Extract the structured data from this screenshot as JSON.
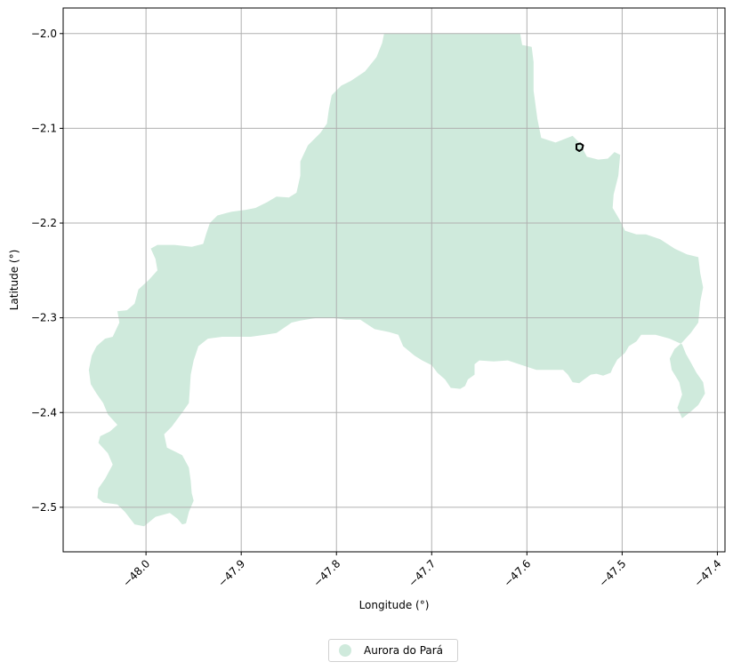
{
  "chart_data": {
    "type": "map",
    "xlabel": "Longitude (°)",
    "ylabel": "Latitude (°)",
    "xlim": [
      -48.087,
      -47.392
    ],
    "ylim": [
      -2.547,
      -1.973
    ],
    "xticks": [
      -48.0,
      -47.9,
      -47.8,
      -47.7,
      -47.6,
      -47.5,
      -47.4
    ],
    "xtick_labels": [
      "−48.0",
      "−47.9",
      "−47.8",
      "−47.7",
      "−47.6",
      "−47.5",
      "−47.4"
    ],
    "yticks": [
      -2.0,
      -2.1,
      -2.2,
      -2.3,
      -2.4,
      -2.5
    ],
    "ytick_labels": [
      "−2.0",
      "−2.1",
      "−2.2",
      "−2.3",
      "−2.4",
      "−2.5"
    ],
    "grid": true,
    "legend_position": "bottom-center",
    "fill_color": "#cfeadc",
    "outline_color": "#000000",
    "regions": [
      {
        "name": "Aurora do Pará",
        "polygon": [
          [
            -47.75,
            -2.0
          ],
          [
            -47.74,
            -2.0
          ],
          [
            -47.72,
            -2.0
          ],
          [
            -47.7,
            -2.0
          ],
          [
            -47.68,
            -2.0
          ],
          [
            -47.66,
            -2.0
          ],
          [
            -47.64,
            -2.0
          ],
          [
            -47.62,
            -2.0
          ],
          [
            -47.607,
            -2.0
          ],
          [
            -47.605,
            -2.012
          ],
          [
            -47.595,
            -2.014
          ],
          [
            -47.593,
            -2.03
          ],
          [
            -47.593,
            -2.06
          ],
          [
            -47.589,
            -2.09
          ],
          [
            -47.585,
            -2.11
          ],
          [
            -47.57,
            -2.115
          ],
          [
            -47.552,
            -2.108
          ],
          [
            -47.545,
            -2.115
          ],
          [
            -47.537,
            -2.13
          ],
          [
            -47.525,
            -2.133
          ],
          [
            -47.515,
            -2.132
          ],
          [
            -47.508,
            -2.125
          ],
          [
            -47.502,
            -2.128
          ],
          [
            -47.504,
            -2.15
          ],
          [
            -47.509,
            -2.17
          ],
          [
            -47.51,
            -2.184
          ],
          [
            -47.503,
            -2.196
          ],
          [
            -47.497,
            -2.208
          ],
          [
            -47.485,
            -2.212
          ],
          [
            -47.475,
            -2.212
          ],
          [
            -47.46,
            -2.217
          ],
          [
            -47.445,
            -2.227
          ],
          [
            -47.432,
            -2.233
          ],
          [
            -47.42,
            -2.236
          ],
          [
            -47.418,
            -2.253
          ],
          [
            -47.415,
            -2.268
          ],
          [
            -47.418,
            -2.283
          ],
          [
            -47.42,
            -2.305
          ],
          [
            -47.428,
            -2.316
          ],
          [
            -47.437,
            -2.326
          ],
          [
            -47.445,
            -2.333
          ],
          [
            -47.45,
            -2.343
          ],
          [
            -47.448,
            -2.355
          ],
          [
            -47.44,
            -2.368
          ],
          [
            -47.437,
            -2.381
          ],
          [
            -47.442,
            -2.395
          ],
          [
            -47.437,
            -2.406
          ],
          [
            -47.428,
            -2.399
          ],
          [
            -47.42,
            -2.392
          ],
          [
            -47.413,
            -2.38
          ],
          [
            -47.415,
            -2.368
          ],
          [
            -47.422,
            -2.358
          ],
          [
            -47.428,
            -2.347
          ],
          [
            -47.433,
            -2.338
          ],
          [
            -47.437,
            -2.328
          ],
          [
            -47.45,
            -2.322
          ],
          [
            -47.465,
            -2.318
          ],
          [
            -47.475,
            -2.318
          ],
          [
            -47.48,
            -2.318
          ],
          [
            -47.485,
            -2.325
          ],
          [
            -47.493,
            -2.33
          ],
          [
            -47.497,
            -2.337
          ],
          [
            -47.505,
            -2.344
          ],
          [
            -47.51,
            -2.353
          ],
          [
            -47.512,
            -2.358
          ],
          [
            -47.52,
            -2.361
          ],
          [
            -47.527,
            -2.359
          ],
          [
            -47.533,
            -2.36
          ],
          [
            -47.54,
            -2.365
          ],
          [
            -47.545,
            -2.369
          ],
          [
            -47.552,
            -2.368
          ],
          [
            -47.557,
            -2.36
          ],
          [
            -47.562,
            -2.355
          ],
          [
            -47.575,
            -2.355
          ],
          [
            -47.59,
            -2.355
          ],
          [
            -47.605,
            -2.35
          ],
          [
            -47.62,
            -2.345
          ],
          [
            -47.635,
            -2.346
          ],
          [
            -47.65,
            -2.345
          ],
          [
            -47.655,
            -2.349
          ],
          [
            -47.655,
            -2.36
          ],
          [
            -47.662,
            -2.365
          ],
          [
            -47.665,
            -2.372
          ],
          [
            -47.67,
            -2.375
          ],
          [
            -47.68,
            -2.374
          ],
          [
            -47.686,
            -2.365
          ],
          [
            -47.694,
            -2.358
          ],
          [
            -47.7,
            -2.35
          ],
          [
            -47.71,
            -2.345
          ],
          [
            -47.718,
            -2.34
          ],
          [
            -47.73,
            -2.33
          ],
          [
            -47.735,
            -2.318
          ],
          [
            -47.745,
            -2.315
          ],
          [
            -47.76,
            -2.312
          ],
          [
            -47.775,
            -2.302
          ],
          [
            -47.79,
            -2.302
          ],
          [
            -47.805,
            -2.3
          ],
          [
            -47.82,
            -2.3
          ],
          [
            -47.838,
            -2.303
          ],
          [
            -47.847,
            -2.305
          ],
          [
            -47.863,
            -2.316
          ],
          [
            -47.875,
            -2.318
          ],
          [
            -47.89,
            -2.32
          ],
          [
            -47.905,
            -2.32
          ],
          [
            -47.92,
            -2.32
          ],
          [
            -47.935,
            -2.322
          ],
          [
            -47.945,
            -2.33
          ],
          [
            -47.95,
            -2.345
          ],
          [
            -47.953,
            -2.36
          ],
          [
            -47.954,
            -2.375
          ],
          [
            -47.955,
            -2.39
          ],
          [
            -47.962,
            -2.4
          ],
          [
            -47.973,
            -2.415
          ],
          [
            -47.981,
            -2.423
          ],
          [
            -47.978,
            -2.437
          ],
          [
            -47.962,
            -2.445
          ],
          [
            -47.955,
            -2.458
          ],
          [
            -47.953,
            -2.472
          ],
          [
            -47.952,
            -2.485
          ],
          [
            -47.95,
            -2.493
          ],
          [
            -47.955,
            -2.505
          ],
          [
            -47.958,
            -2.517
          ],
          [
            -47.962,
            -2.518
          ],
          [
            -47.967,
            -2.512
          ],
          [
            -47.975,
            -2.506
          ],
          [
            -47.99,
            -2.51
          ],
          [
            -48.002,
            -2.52
          ],
          [
            -48.012,
            -2.518
          ],
          [
            -48.022,
            -2.505
          ],
          [
            -48.03,
            -2.497
          ],
          [
            -48.045,
            -2.495
          ],
          [
            -48.051,
            -2.49
          ],
          [
            -48.05,
            -2.48
          ],
          [
            -48.043,
            -2.47
          ],
          [
            -48.035,
            -2.455
          ],
          [
            -48.04,
            -2.443
          ],
          [
            -48.05,
            -2.432
          ],
          [
            -48.048,
            -2.425
          ],
          [
            -48.038,
            -2.42
          ],
          [
            -48.03,
            -2.413
          ],
          [
            -48.04,
            -2.402
          ],
          [
            -48.045,
            -2.39
          ],
          [
            -48.052,
            -2.38
          ],
          [
            -48.058,
            -2.37
          ],
          [
            -48.06,
            -2.355
          ],
          [
            -48.057,
            -2.34
          ],
          [
            -48.052,
            -2.33
          ],
          [
            -48.043,
            -2.322
          ],
          [
            -48.035,
            -2.32
          ],
          [
            -48.028,
            -2.305
          ],
          [
            -48.03,
            -2.293
          ],
          [
            -48.02,
            -2.292
          ],
          [
            -48.012,
            -2.285
          ],
          [
            -48.008,
            -2.27
          ],
          [
            -47.997,
            -2.26
          ],
          [
            -47.988,
            -2.25
          ],
          [
            -47.99,
            -2.238
          ],
          [
            -47.995,
            -2.227
          ],
          [
            -47.988,
            -2.223
          ],
          [
            -47.97,
            -2.223
          ],
          [
            -47.952,
            -2.225
          ],
          [
            -47.94,
            -2.222
          ],
          [
            -47.937,
            -2.212
          ],
          [
            -47.933,
            -2.2
          ],
          [
            -47.925,
            -2.192
          ],
          [
            -47.91,
            -2.188
          ],
          [
            -47.895,
            -2.186
          ],
          [
            -47.885,
            -2.184
          ],
          [
            -47.873,
            -2.178
          ],
          [
            -47.863,
            -2.172
          ],
          [
            -47.85,
            -2.173
          ],
          [
            -47.842,
            -2.168
          ],
          [
            -47.838,
            -2.15
          ],
          [
            -47.838,
            -2.135
          ],
          [
            -47.83,
            -2.118
          ],
          [
            -47.817,
            -2.105
          ],
          [
            -47.81,
            -2.095
          ],
          [
            -47.808,
            -2.08
          ],
          [
            -47.805,
            -2.065
          ],
          [
            -47.795,
            -2.055
          ],
          [
            -47.785,
            -2.05
          ],
          [
            -47.77,
            -2.04
          ],
          [
            -47.758,
            -2.025
          ],
          [
            -47.752,
            -2.01
          ]
        ]
      }
    ],
    "outlines": [
      {
        "polygon": [
          [
            -47.544,
            -2.116
          ],
          [
            -47.541,
            -2.118
          ],
          [
            -47.542,
            -2.122
          ],
          [
            -47.545,
            -2.124
          ],
          [
            -47.548,
            -2.122
          ],
          [
            -47.548,
            -2.117
          ]
        ]
      }
    ],
    "legend": [
      {
        "label": "Aurora do Pará",
        "color": "#cfeadc"
      }
    ]
  }
}
